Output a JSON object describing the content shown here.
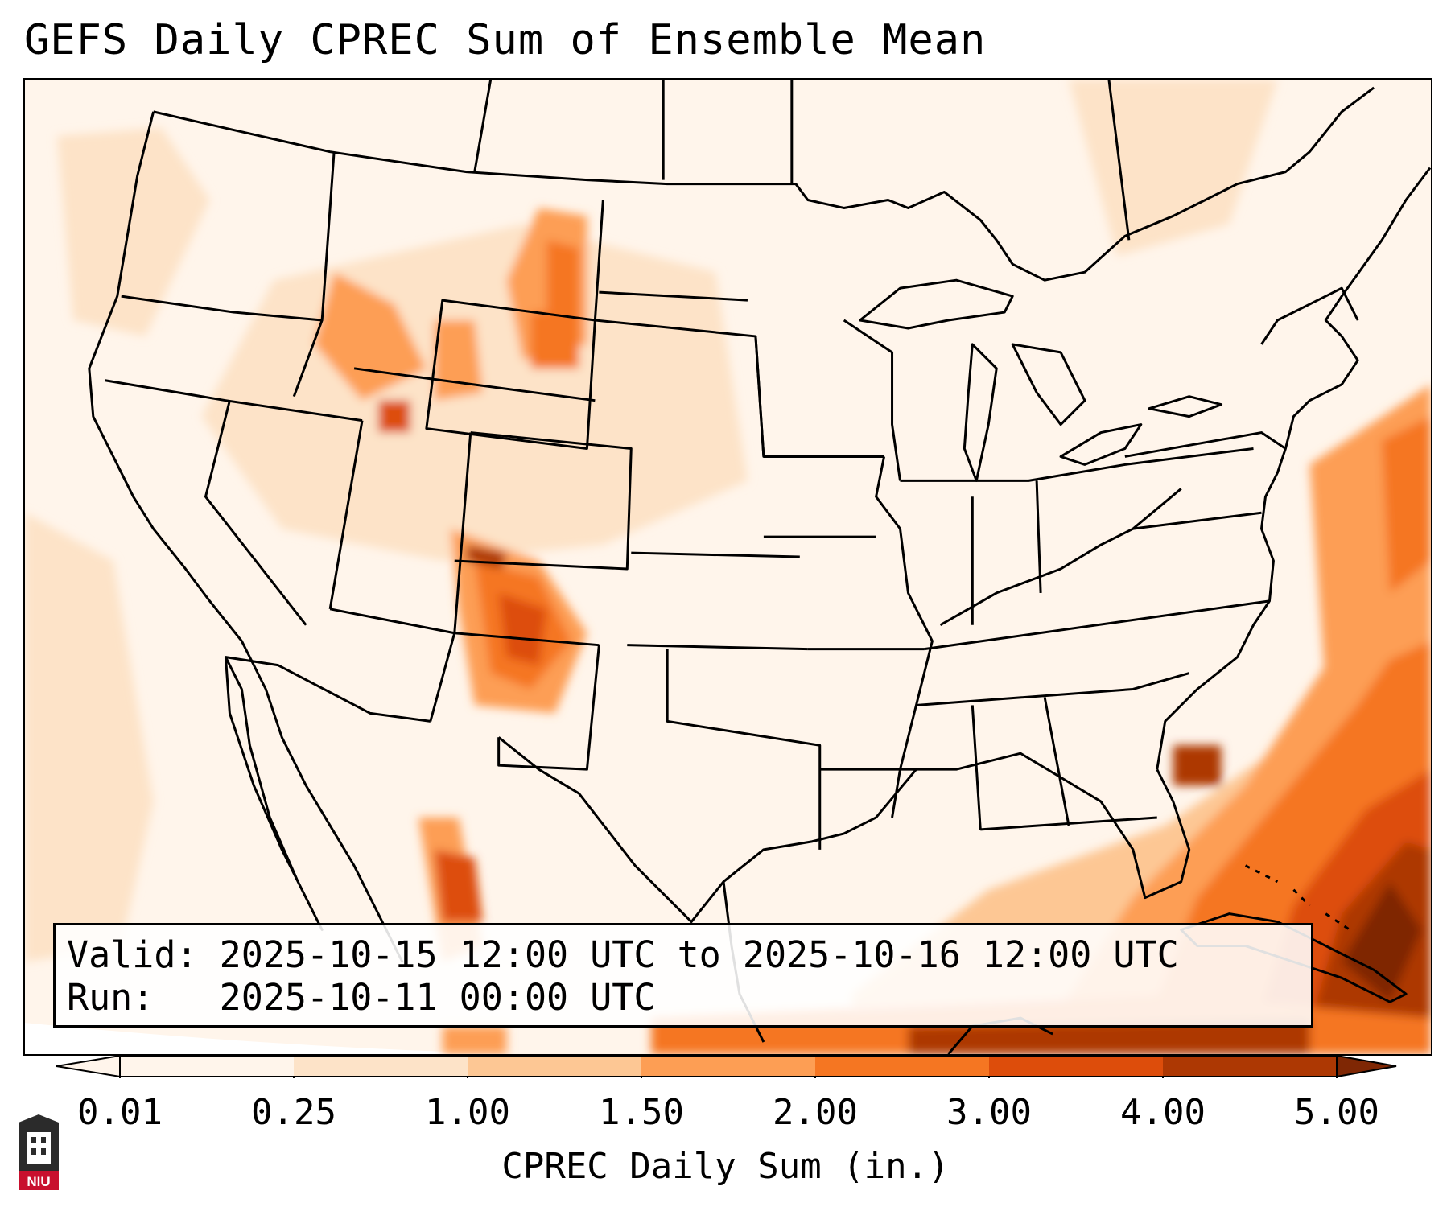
{
  "title": "GEFS Daily CPREC Sum of Ensemble Mean",
  "info": {
    "valid_line": "Valid: 2025-10-15 12:00 UTC to 2025-10-16 12:00 UTC",
    "run_line": "Run:   2025-10-11 00:00 UTC"
  },
  "colorbar": {
    "label": "CPREC Daily Sum (in.)",
    "ticks": [
      "0.01",
      "0.25",
      "1.00",
      "1.50",
      "2.00",
      "3.00",
      "4.00",
      "5.00"
    ],
    "colors": [
      "#fff5eb",
      "#fde3c8",
      "#fdc794",
      "#fd9e54",
      "#f57622",
      "#dd4d0b",
      "#ad3803",
      "#7f2704"
    ],
    "extend": "both"
  },
  "map": {
    "domain": "CONUS",
    "field_colors": {
      "light": "#fff5eb",
      "pale": "#fde3c8",
      "medium": "#fdc794",
      "orange": "#fd9e54",
      "strong": "#f57622",
      "dark": "#dd4d0b",
      "darker": "#ad3803",
      "darkest": "#7f2704"
    },
    "logo_text": "NIU"
  }
}
